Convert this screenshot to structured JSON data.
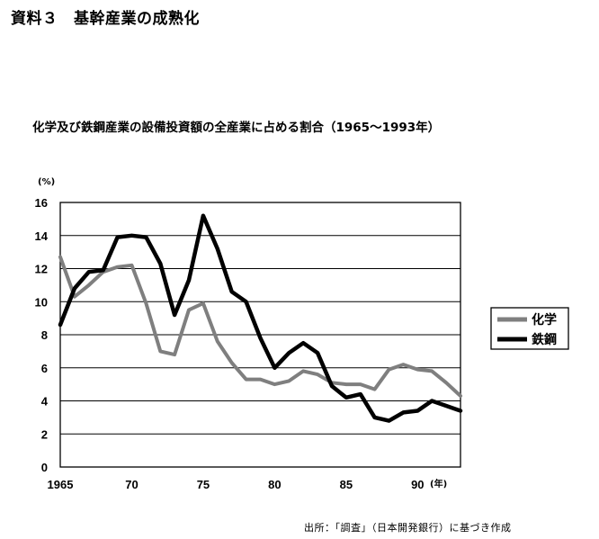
{
  "doc_title": "資料３　基幹産業の成熟化",
  "source_note": "出所：「調査」（日本開発銀行）に基づき作成",
  "colors": {
    "chemical": "#7f7f7f",
    "steel": "#000000",
    "grid": "#000000",
    "background": "#ffffff"
  },
  "chart_data": {
    "type": "line",
    "title": "化学及び鉄鋼産業の設備投資額の全産業に占める割合（1965〜1993年）",
    "ylabel": "(%)",
    "xlabel": "(年)",
    "xlim": [
      1965,
      1993
    ],
    "ylim": [
      0,
      16
    ],
    "grid": true,
    "legend_position": "right",
    "x_ticks": [
      1965,
      1970,
      1975,
      1980,
      1985,
      1990
    ],
    "x_tick_labels": [
      "1965",
      "70",
      "75",
      "80",
      "85",
      "90"
    ],
    "y_ticks": [
      0,
      2,
      4,
      6,
      8,
      10,
      12,
      14,
      16
    ],
    "x": [
      1965,
      1966,
      1967,
      1968,
      1969,
      1970,
      1971,
      1972,
      1973,
      1974,
      1975,
      1976,
      1977,
      1978,
      1979,
      1980,
      1981,
      1982,
      1983,
      1984,
      1985,
      1986,
      1987,
      1988,
      1989,
      1990,
      1991,
      1992,
      1993
    ],
    "series": [
      {
        "name": "化学",
        "color": "#7f7f7f",
        "values": [
          12.7,
          10.3,
          11.0,
          11.8,
          12.1,
          12.2,
          9.9,
          7.0,
          6.8,
          9.5,
          9.9,
          7.6,
          6.3,
          5.3,
          5.3,
          5.0,
          5.2,
          5.8,
          5.6,
          5.1,
          5.0,
          5.0,
          4.7,
          5.9,
          6.2,
          5.9,
          5.8,
          5.1,
          4.3
        ]
      },
      {
        "name": "鉄鋼",
        "color": "#000000",
        "values": [
          8.6,
          10.8,
          11.8,
          11.9,
          13.9,
          14.0,
          13.9,
          12.3,
          9.2,
          11.3,
          15.2,
          13.2,
          10.6,
          10.0,
          7.8,
          6.0,
          6.9,
          7.5,
          6.9,
          4.9,
          4.2,
          4.4,
          3.0,
          2.8,
          3.3,
          3.4,
          4.0,
          3.7,
          3.4
        ]
      }
    ]
  }
}
